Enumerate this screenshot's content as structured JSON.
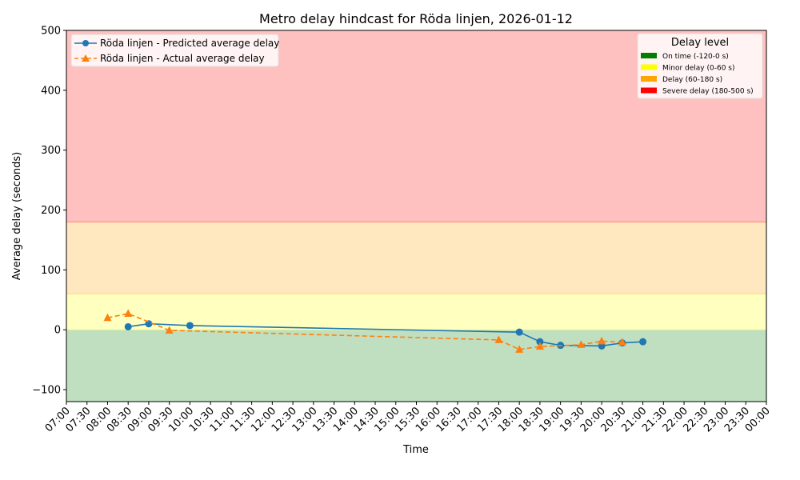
{
  "chart_data": {
    "type": "line",
    "title": "Metro delay hindcast for Röda linjen, 2026-01-12",
    "xlabel": "Time",
    "ylabel": "Average delay (seconds)",
    "ylim": [
      -120,
      500
    ],
    "xlim": [
      "07:00",
      "00:00"
    ],
    "y_ticks": [
      -100,
      0,
      100,
      200,
      300,
      400,
      500
    ],
    "x_ticks": [
      "07:00",
      "07:30",
      "08:00",
      "08:30",
      "09:00",
      "09:30",
      "10:00",
      "10:30",
      "11:00",
      "11:30",
      "12:00",
      "12:30",
      "13:00",
      "13:30",
      "14:00",
      "14:30",
      "15:00",
      "15:30",
      "16:00",
      "16:30",
      "17:00",
      "17:30",
      "18:00",
      "18:30",
      "19:00",
      "19:30",
      "20:00",
      "20:30",
      "21:00",
      "21:30",
      "22:00",
      "22:30",
      "23:00",
      "23:30",
      "00:00"
    ],
    "grid": false,
    "series": [
      {
        "name": "Röda linjen - Predicted average delay",
        "color": "#1f77b4",
        "marker": "circle",
        "linestyle": "solid",
        "x": [
          "08:30",
          "09:00",
          "10:00",
          "18:00",
          "18:30",
          "19:00",
          "20:00",
          "20:30",
          "21:00"
        ],
        "values": [
          5,
          10,
          7,
          -4,
          -20,
          -26,
          -27,
          -22,
          -20
        ]
      },
      {
        "name": "Röda linjen - Actual average delay",
        "color": "#ff7f0e",
        "marker": "triangle",
        "linestyle": "dashed",
        "x": [
          "08:00",
          "08:30",
          "09:30",
          "17:30",
          "18:00",
          "18:30",
          "19:30",
          "20:00",
          "20:30"
        ],
        "values": [
          20,
          27,
          -1,
          -17,
          -33,
          -28,
          -25,
          -19,
          -21
        ]
      }
    ],
    "bands": [
      {
        "label": "On time (-120-0 s)",
        "from": -120,
        "to": 0,
        "color": "#008000",
        "fill": "#c0dfc0"
      },
      {
        "label": "Minor delay (0-60 s)",
        "from": 0,
        "to": 60,
        "color": "#ffff00",
        "fill": "#ffffc0"
      },
      {
        "label": "Delay (60-180 s)",
        "from": 60,
        "to": 180,
        "color": "#ffa500",
        "fill": "#ffe8c0"
      },
      {
        "label": "Severe delay (180-500 s)",
        "from": 180,
        "to": 500,
        "color": "#ff0000",
        "fill": "#ffc0c0"
      }
    ],
    "legend_series_position": "upper left",
    "legend_bands_title": "Delay level",
    "legend_bands_position": "upper right"
  }
}
